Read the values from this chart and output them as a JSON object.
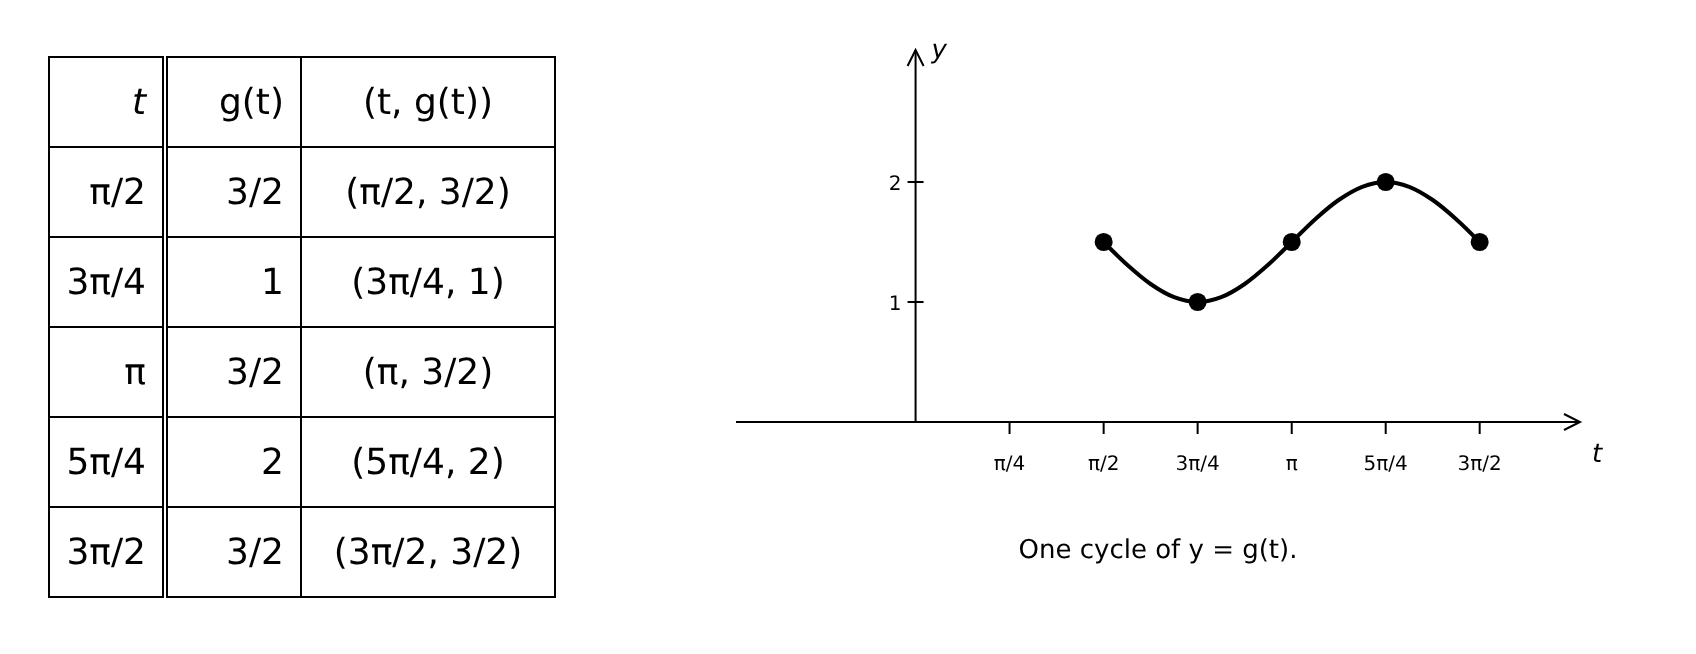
{
  "chart_data": {
    "type": "line",
    "title": "One cycle of y = g(t).",
    "xlabel": "t",
    "ylabel": "y",
    "annotations": [
      "g(t)",
      "(t, g(t))",
      "3/2",
      "1",
      "3/2",
      "2",
      "3/2",
      "(π/2, 3/2)",
      "(3π/4, 1)",
      "(π, 3/2)",
      "(5π/4, 2)",
      "(3π/2, 3/2)"
    ],
    "xlim": [
      -1.5,
      5.55
    ],
    "ylim": [
      0,
      3.1
    ],
    "xticks": [
      {
        "value": 0.785,
        "label": "π/4"
      },
      {
        "value": 1.571,
        "label": "π/2"
      },
      {
        "value": 2.356,
        "label": "3π/4"
      },
      {
        "value": 3.142,
        "label": "π"
      },
      {
        "value": 3.927,
        "label": "5π/4"
      },
      {
        "value": 4.712,
        "label": "3π/2"
      }
    ],
    "yticks": [
      1,
      2
    ],
    "series": [
      {
        "color": "#000000",
        "marker": "none",
        "x": [
          1.571,
          1.767,
          1.963,
          2.16,
          2.356,
          2.553,
          2.749,
          2.945,
          3.142,
          3.338,
          3.534,
          3.731,
          3.927,
          4.123,
          4.32,
          4.516,
          4.712
        ],
        "values": [
          1.5,
          1.31,
          1.15,
          1.04,
          1.0,
          1.04,
          1.15,
          1.31,
          1.5,
          1.69,
          1.85,
          1.96,
          2.0,
          1.96,
          1.85,
          1.69,
          1.5
        ]
      },
      {
        "type": "scatter",
        "color": "#000000",
        "marker": "circle",
        "x": [
          1.571,
          2.356,
          3.142,
          3.927,
          4.712
        ],
        "values": [
          1.5,
          1.0,
          1.5,
          2.0,
          1.5
        ]
      }
    ]
  }
}
